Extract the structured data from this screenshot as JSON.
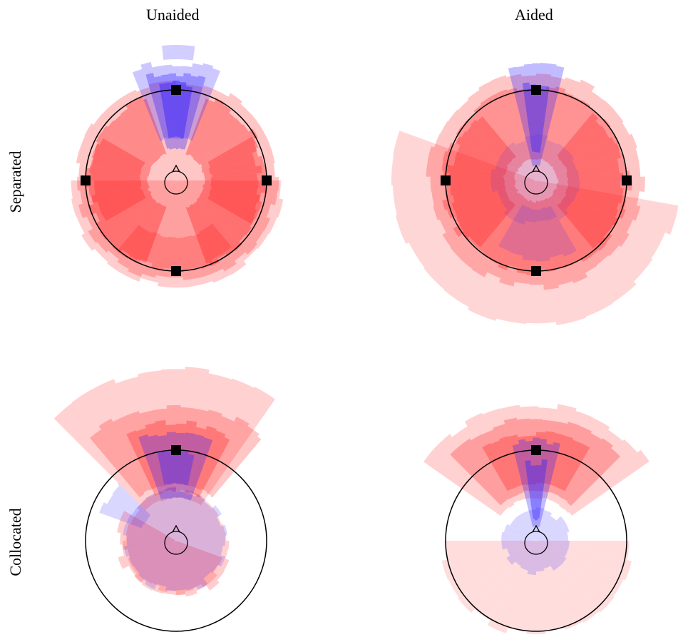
{
  "columns": [
    "Unaided",
    "Aided"
  ],
  "rows": [
    "Separated",
    "Collocated"
  ],
  "colors": {
    "red": "#ff1a1a",
    "blue": "#3322ff",
    "outline": "#000000"
  },
  "panels": [
    {
      "row": "Separated",
      "column": "Unaided",
      "speakers": [
        "front",
        "left",
        "right",
        "back"
      ]
    },
    {
      "row": "Separated",
      "column": "Aided",
      "speakers": [
        "front",
        "left",
        "right",
        "back"
      ]
    },
    {
      "row": "Collocated",
      "column": "Unaided",
      "speakers": [
        "front"
      ]
    },
    {
      "row": "Collocated",
      "column": "Aided",
      "speakers": [
        "front"
      ]
    }
  ]
}
